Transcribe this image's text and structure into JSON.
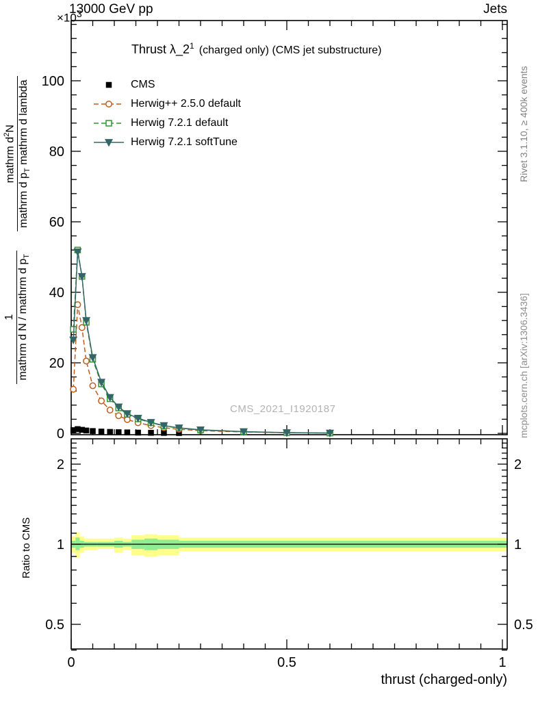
{
  "header": {
    "scale_base": "×10",
    "scale_exp": "3",
    "beam": "13000 GeV pp",
    "right_label": "Jets"
  },
  "title": {
    "pre": "Thrust λ_2",
    "sup": "1",
    "post": "(charged only) (CMS jet substructure)"
  },
  "watermark": "CMS_2021_I1920187",
  "notes": {
    "rivet": "Rivet 3.1.10, ≥ 400k events",
    "mcplots": "mcplots.cern.ch [arXiv:1306.3436]"
  },
  "ylabel": {
    "frac1": {
      "num": "1",
      "den_pre": "mathrm d N / mathrm d p",
      "den_sub": "T"
    },
    "frac2": {
      "num_pre": "mathrm d",
      "num_sup": "2",
      "num_post": "N",
      "den_pre": "mathrm d p",
      "den_sub": "T",
      "den_post": " mathrm d lambda"
    }
  },
  "ratio_label": "Ratio to CMS",
  "chart_data": {
    "type": "line",
    "title": "Thrust λ_2^1 (charged only) (CMS jet substructure)",
    "xlabel": "thrust (charged-only)",
    "ylabel": "1/(dN/dp_T) · d²N/(dp_T dλ)",
    "y_unit": "×10^3",
    "legend_position": "top-left",
    "grid": false,
    "x_axis": {
      "min": 0,
      "max": 1.012,
      "major": [
        0,
        0.5,
        1
      ],
      "major_labels": [
        "0",
        "0.5",
        "1"
      ],
      "minor_step": 0.05
    },
    "y_main_axis": {
      "min": 0,
      "max": 117,
      "major": [
        0,
        20,
        40,
        60,
        80,
        100
      ],
      "major_labels": [
        "0",
        "20",
        "40",
        "60",
        "80",
        "100"
      ],
      "minor_step": 4
    },
    "y_ratio_axis": {
      "min": 0.4,
      "max": 2.49,
      "scale": "log",
      "major": [
        0.5,
        1,
        2
      ],
      "major_labels": [
        "0.5",
        "1",
        "2"
      ],
      "minor": [
        0.4,
        0.6,
        0.7,
        0.8,
        0.9,
        1.1,
        1.2,
        1.3,
        1.4,
        1.5,
        1.6,
        1.7,
        1.8,
        1.9,
        2.1,
        2.2,
        2.3,
        2.4
      ]
    },
    "series": [
      {
        "name": "CMS",
        "role": "data",
        "marker": "square",
        "filled": true,
        "color": "#000000",
        "line": false,
        "dash": null,
        "x": [
          0.005,
          0.015,
          0.025,
          0.035,
          0.05,
          0.07,
          0.09,
          0.11,
          0.13,
          0.155,
          0.185,
          0.215,
          0.25
        ],
        "y": [
          0.9,
          1.2,
          1.0,
          0.8,
          0.65,
          0.5,
          0.4,
          0.32,
          0.26,
          0.2,
          0.15,
          0.12,
          0.09
        ]
      },
      {
        "name": "Herwig++ 2.5.0 default",
        "role": "mc",
        "marker": "circle",
        "filled": false,
        "color": "#bf5b1d",
        "line": true,
        "dash": "7 4",
        "x": [
          0.005,
          0.015,
          0.025,
          0.035,
          0.05,
          0.07,
          0.09,
          0.11,
          0.13,
          0.155,
          0.185,
          0.215,
          0.25,
          0.3,
          0.4,
          0.5,
          0.6
        ],
        "y": [
          12.5,
          36.5,
          30.0,
          20.5,
          13.5,
          9.2,
          6.6,
          5.0,
          3.9,
          3.0,
          2.2,
          1.6,
          1.15,
          0.75,
          0.38,
          0.17,
          0.07
        ]
      },
      {
        "name": "Herwig 7.2.1 default",
        "role": "mc",
        "marker": "square",
        "filled": false,
        "color": "#2e972e",
        "line": true,
        "dash": "7 4",
        "x": [
          0.005,
          0.015,
          0.025,
          0.035,
          0.05,
          0.07,
          0.09,
          0.11,
          0.13,
          0.155,
          0.185,
          0.215,
          0.25,
          0.3,
          0.4,
          0.5,
          0.6
        ],
        "y": [
          29.5,
          52.0,
          44.5,
          31.5,
          21.0,
          14.0,
          9.8,
          7.2,
          5.4,
          4.1,
          3.0,
          2.1,
          1.5,
          0.95,
          0.45,
          0.19,
          0.08
        ]
      },
      {
        "name": "Herwig 7.2.1 softTune",
        "role": "mc",
        "marker": "triangle-down",
        "filled": true,
        "color": "#336666",
        "line": true,
        "dash": null,
        "x": [
          0.005,
          0.015,
          0.025,
          0.035,
          0.05,
          0.07,
          0.09,
          0.11,
          0.13,
          0.155,
          0.185,
          0.215,
          0.25,
          0.3,
          0.4,
          0.5,
          0.6
        ],
        "y": [
          26.5,
          51.5,
          44.5,
          32.0,
          21.5,
          14.5,
          10.2,
          7.5,
          5.6,
          4.3,
          3.1,
          2.2,
          1.55,
          1.0,
          0.48,
          0.2,
          0.08
        ]
      }
    ],
    "ratio_band": {
      "yellow": "#ffff8c",
      "green": "#90ee90",
      "unity": 1.0,
      "unity_color": "#000000",
      "segments": [
        [
          0.0,
          0.01,
          0.93,
          1.07,
          0.97,
          1.03
        ],
        [
          0.01,
          0.02,
          0.89,
          1.11,
          0.95,
          1.06
        ],
        [
          0.02,
          0.03,
          0.93,
          1.07,
          0.97,
          1.03
        ],
        [
          0.03,
          0.06,
          0.95,
          1.05,
          0.98,
          1.02
        ],
        [
          0.06,
          0.1,
          0.96,
          1.05,
          0.98,
          1.02
        ],
        [
          0.1,
          0.12,
          0.93,
          1.06,
          0.97,
          1.03
        ],
        [
          0.12,
          0.14,
          0.95,
          1.05,
          0.98,
          1.02
        ],
        [
          0.14,
          0.17,
          0.91,
          1.08,
          0.96,
          1.04
        ],
        [
          0.17,
          0.2,
          0.9,
          1.09,
          0.95,
          1.05
        ],
        [
          0.2,
          0.25,
          0.91,
          1.08,
          0.96,
          1.04
        ],
        [
          0.25,
          1.012,
          0.94,
          1.06,
          0.97,
          1.03
        ]
      ]
    }
  }
}
